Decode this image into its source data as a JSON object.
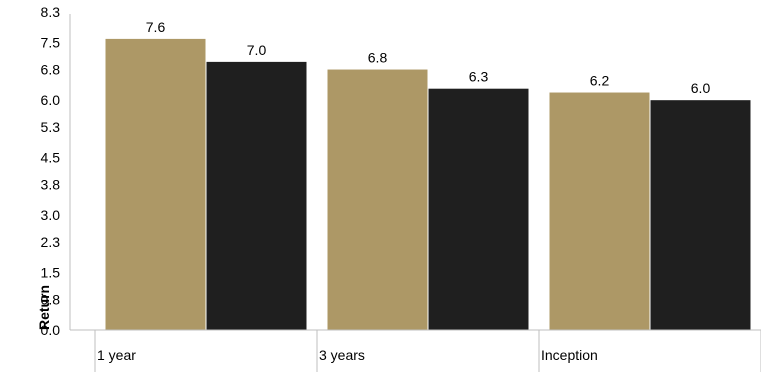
{
  "chart_data": {
    "type": "bar",
    "categories": [
      "1 year",
      "3 years",
      "Inception"
    ],
    "series": [
      {
        "values": [
          7.6,
          6.8,
          6.2
        ],
        "color": "#ad9866"
      },
      {
        "values": [
          7.0,
          6.3,
          6.0
        ],
        "color": "#1f1f1f"
      }
    ],
    "data_labels": [
      [
        "7.6",
        "6.8",
        "6.2"
      ],
      [
        "7.0",
        "6.3",
        "6.0"
      ]
    ],
    "title": "",
    "xlabel": "",
    "ylabel": "Return",
    "yticks": [
      "0.0",
      "0.8",
      "1.5",
      "2.3",
      "3.0",
      "3.8",
      "4.5",
      "5.3",
      "6.0",
      "6.8",
      "7.5",
      "8.3"
    ],
    "ylim": [
      0,
      8.25
    ],
    "grid": false,
    "legend": "none"
  }
}
